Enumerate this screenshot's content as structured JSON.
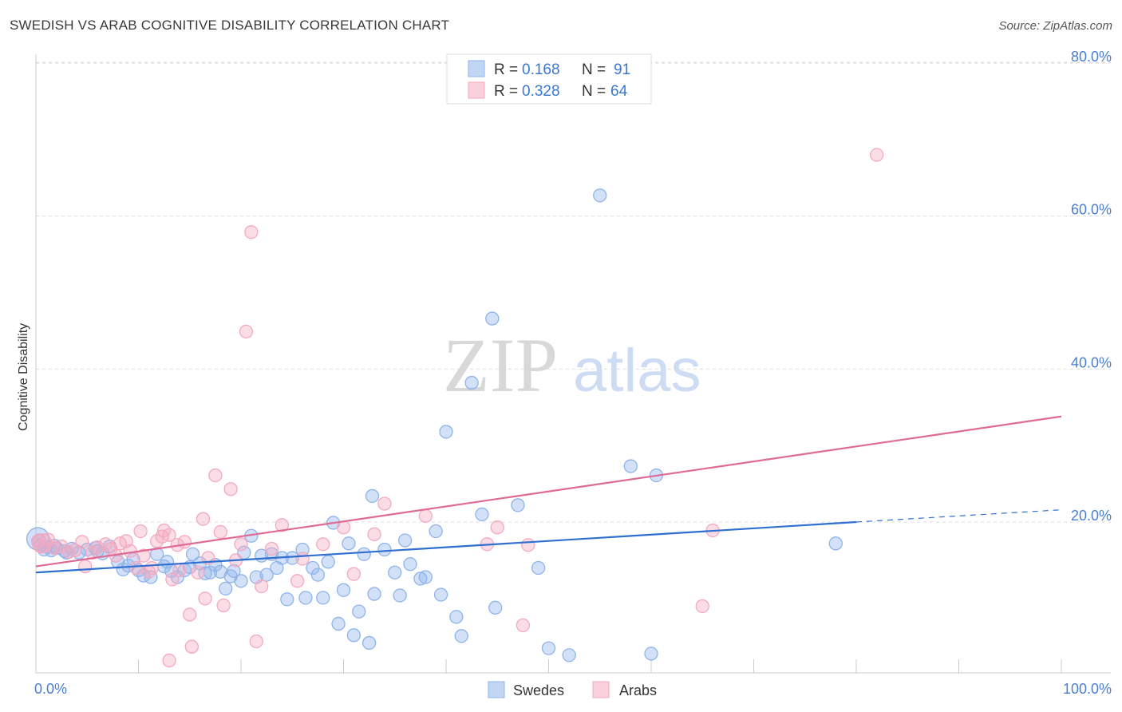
{
  "header": {
    "title": "SWEDISH VS ARAB COGNITIVE DISABILITY CORRELATION CHART",
    "source": "Source: ZipAtlas.com"
  },
  "watermark": {
    "zip": "ZIP",
    "atlas": "atlas"
  },
  "legend": {
    "r_label": "R =",
    "n_label": "N =",
    "rows": [
      {
        "r": "0.168",
        "n": "91",
        "color": "#8fb4ea"
      },
      {
        "r": "0.328",
        "n": "64",
        "color": "#f4a9c0"
      }
    ]
  },
  "chart_data": {
    "type": "scatter",
    "title": "SWEDISH VS ARAB COGNITIVE DISABILITY CORRELATION CHART",
    "xlabel": "",
    "ylabel": "Cognitive Disability",
    "xlim": [
      0,
      100
    ],
    "ylim": [
      0,
      85
    ],
    "x_tick_labels": [
      "0.0%",
      "100.0%"
    ],
    "y_ticks": [
      20,
      40,
      60,
      80
    ],
    "y_tick_labels": [
      "20.0%",
      "40.0%",
      "60.0%",
      "80.0%"
    ],
    "grid": "horizontal dashed",
    "legend_position": "top-center",
    "series": [
      {
        "name": "Swedes",
        "color": "#8fb4ea",
        "line_color": "#2f6fd0",
        "trend": {
          "x": [
            0,
            80
          ],
          "y": [
            13.4,
            20.0
          ],
          "dashed_to": [
            100,
            21.6
          ]
        },
        "points": [
          [
            0.3,
            17.6
          ],
          [
            0.5,
            17.0
          ],
          [
            1.0,
            16.8
          ],
          [
            1.5,
            16.3
          ],
          [
            2.0,
            16.6
          ],
          [
            2.8,
            16.2
          ],
          [
            3.5,
            16.5
          ],
          [
            4.2,
            16.0
          ],
          [
            5.0,
            16.4
          ],
          [
            5.8,
            16.6
          ],
          [
            6.5,
            15.9
          ],
          [
            7.2,
            16.8
          ],
          [
            8.0,
            14.8
          ],
          [
            8.5,
            13.8
          ],
          [
            9.0,
            14.3
          ],
          [
            10.0,
            13.7
          ],
          [
            10.5,
            13.0
          ],
          [
            11.2,
            12.8
          ],
          [
            11.8,
            15.8
          ],
          [
            12.5,
            14.2
          ],
          [
            12.8,
            14.8
          ],
          [
            13.2,
            13.6
          ],
          [
            13.8,
            12.8
          ],
          [
            14.5,
            13.7
          ],
          [
            15.0,
            14.1
          ],
          [
            15.3,
            15.8
          ],
          [
            16.0,
            14.6
          ],
          [
            16.5,
            13.3
          ],
          [
            17.0,
            13.4
          ],
          [
            17.5,
            14.4
          ],
          [
            18.0,
            13.5
          ],
          [
            18.5,
            11.3
          ],
          [
            19.0,
            12.9
          ],
          [
            19.3,
            13.6
          ],
          [
            20.0,
            12.3
          ],
          [
            20.3,
            16.0
          ],
          [
            21.0,
            18.2
          ],
          [
            21.5,
            12.8
          ],
          [
            22.0,
            15.6
          ],
          [
            22.5,
            13.1
          ],
          [
            23.0,
            15.8
          ],
          [
            23.5,
            14.0
          ],
          [
            24.0,
            15.3
          ],
          [
            24.5,
            9.9
          ],
          [
            25.0,
            15.3
          ],
          [
            26.0,
            16.4
          ],
          [
            26.3,
            10.1
          ],
          [
            27.0,
            14.0
          ],
          [
            27.5,
            13.1
          ],
          [
            28.0,
            10.1
          ],
          [
            28.5,
            14.8
          ],
          [
            29.0,
            19.9
          ],
          [
            29.5,
            6.7
          ],
          [
            30.0,
            11.1
          ],
          [
            30.5,
            17.2
          ],
          [
            31.0,
            5.2
          ],
          [
            31.5,
            8.3
          ],
          [
            32.0,
            15.8
          ],
          [
            32.5,
            4.2
          ],
          [
            32.8,
            23.4
          ],
          [
            33.0,
            10.6
          ],
          [
            34.0,
            16.4
          ],
          [
            35.0,
            13.4
          ],
          [
            35.5,
            10.4
          ],
          [
            36.0,
            17.6
          ],
          [
            36.5,
            14.5
          ],
          [
            37.5,
            12.6
          ],
          [
            38.0,
            12.8
          ],
          [
            39.0,
            18.8
          ],
          [
            39.5,
            10.5
          ],
          [
            40.0,
            31.8
          ],
          [
            41.0,
            7.6
          ],
          [
            41.5,
            5.1
          ],
          [
            42.5,
            38.2
          ],
          [
            43.5,
            21.0
          ],
          [
            44.5,
            46.6
          ],
          [
            44.8,
            8.8
          ],
          [
            47.0,
            22.2
          ],
          [
            49.0,
            14.0
          ],
          [
            50.0,
            3.5
          ],
          [
            52.0,
            2.6
          ],
          [
            55.0,
            62.7
          ],
          [
            58.0,
            27.3
          ],
          [
            60.0,
            2.8
          ],
          [
            60.5,
            26.1
          ],
          [
            78.0,
            17.2
          ],
          [
            0.8,
            16.4
          ],
          [
            1.8,
            16.9
          ],
          [
            3.0,
            16.0
          ],
          [
            6.0,
            16.2
          ],
          [
            9.5,
            15.1
          ]
        ]
      },
      {
        "name": "Arabs",
        "color": "#f4a9c0",
        "line_color": "#e06a96",
        "trend": {
          "x": [
            0,
            100
          ],
          "y": [
            14.2,
            33.8
          ]
        },
        "points": [
          [
            0.2,
            17.5
          ],
          [
            0.6,
            16.9
          ],
          [
            1.2,
            17.7
          ],
          [
            1.8,
            16.6
          ],
          [
            2.5,
            16.8
          ],
          [
            3.2,
            16.1
          ],
          [
            3.8,
            16.3
          ],
          [
            4.5,
            17.4
          ],
          [
            4.8,
            14.2
          ],
          [
            5.5,
            16.0
          ],
          [
            6.0,
            16.7
          ],
          [
            6.8,
            17.1
          ],
          [
            7.3,
            16.5
          ],
          [
            7.8,
            15.6
          ],
          [
            8.2,
            17.2
          ],
          [
            8.8,
            17.5
          ],
          [
            9.2,
            16.2
          ],
          [
            9.8,
            14.0
          ],
          [
            10.2,
            18.8
          ],
          [
            10.5,
            15.6
          ],
          [
            11.0,
            13.5
          ],
          [
            11.3,
            14.0
          ],
          [
            11.8,
            17.5
          ],
          [
            12.3,
            18.1
          ],
          [
            12.5,
            18.9
          ],
          [
            13.0,
            18.3
          ],
          [
            13.3,
            12.5
          ],
          [
            13.8,
            17.0
          ],
          [
            13.0,
            1.9
          ],
          [
            14.0,
            13.7
          ],
          [
            14.5,
            17.4
          ],
          [
            15.0,
            7.9
          ],
          [
            15.2,
            3.7
          ],
          [
            15.8,
            13.4
          ],
          [
            16.3,
            20.4
          ],
          [
            16.5,
            10.0
          ],
          [
            16.8,
            15.3
          ],
          [
            17.5,
            26.1
          ],
          [
            18.0,
            18.7
          ],
          [
            18.3,
            9.1
          ],
          [
            19.0,
            24.3
          ],
          [
            19.5,
            15.0
          ],
          [
            20.0,
            17.1
          ],
          [
            20.5,
            44.9
          ],
          [
            21.0,
            57.9
          ],
          [
            21.5,
            4.4
          ],
          [
            22.0,
            11.6
          ],
          [
            23.0,
            16.5
          ],
          [
            24.0,
            19.6
          ],
          [
            25.5,
            12.3
          ],
          [
            26.0,
            15.2
          ],
          [
            28.0,
            17.1
          ],
          [
            30.0,
            19.3
          ],
          [
            31.0,
            13.2
          ],
          [
            33.0,
            18.4
          ],
          [
            34.0,
            22.4
          ],
          [
            38.0,
            20.8
          ],
          [
            44.0,
            17.1
          ],
          [
            45.0,
            19.3
          ],
          [
            47.5,
            6.5
          ],
          [
            48.0,
            17.0
          ],
          [
            65.0,
            9.0
          ],
          [
            66.0,
            18.9
          ],
          [
            82.0,
            68.0
          ]
        ]
      }
    ]
  },
  "bottom_legend": [
    {
      "label": "Swedes",
      "color": "#8fb4ea"
    },
    {
      "label": "Arabs",
      "color": "#f4a9c0"
    }
  ]
}
